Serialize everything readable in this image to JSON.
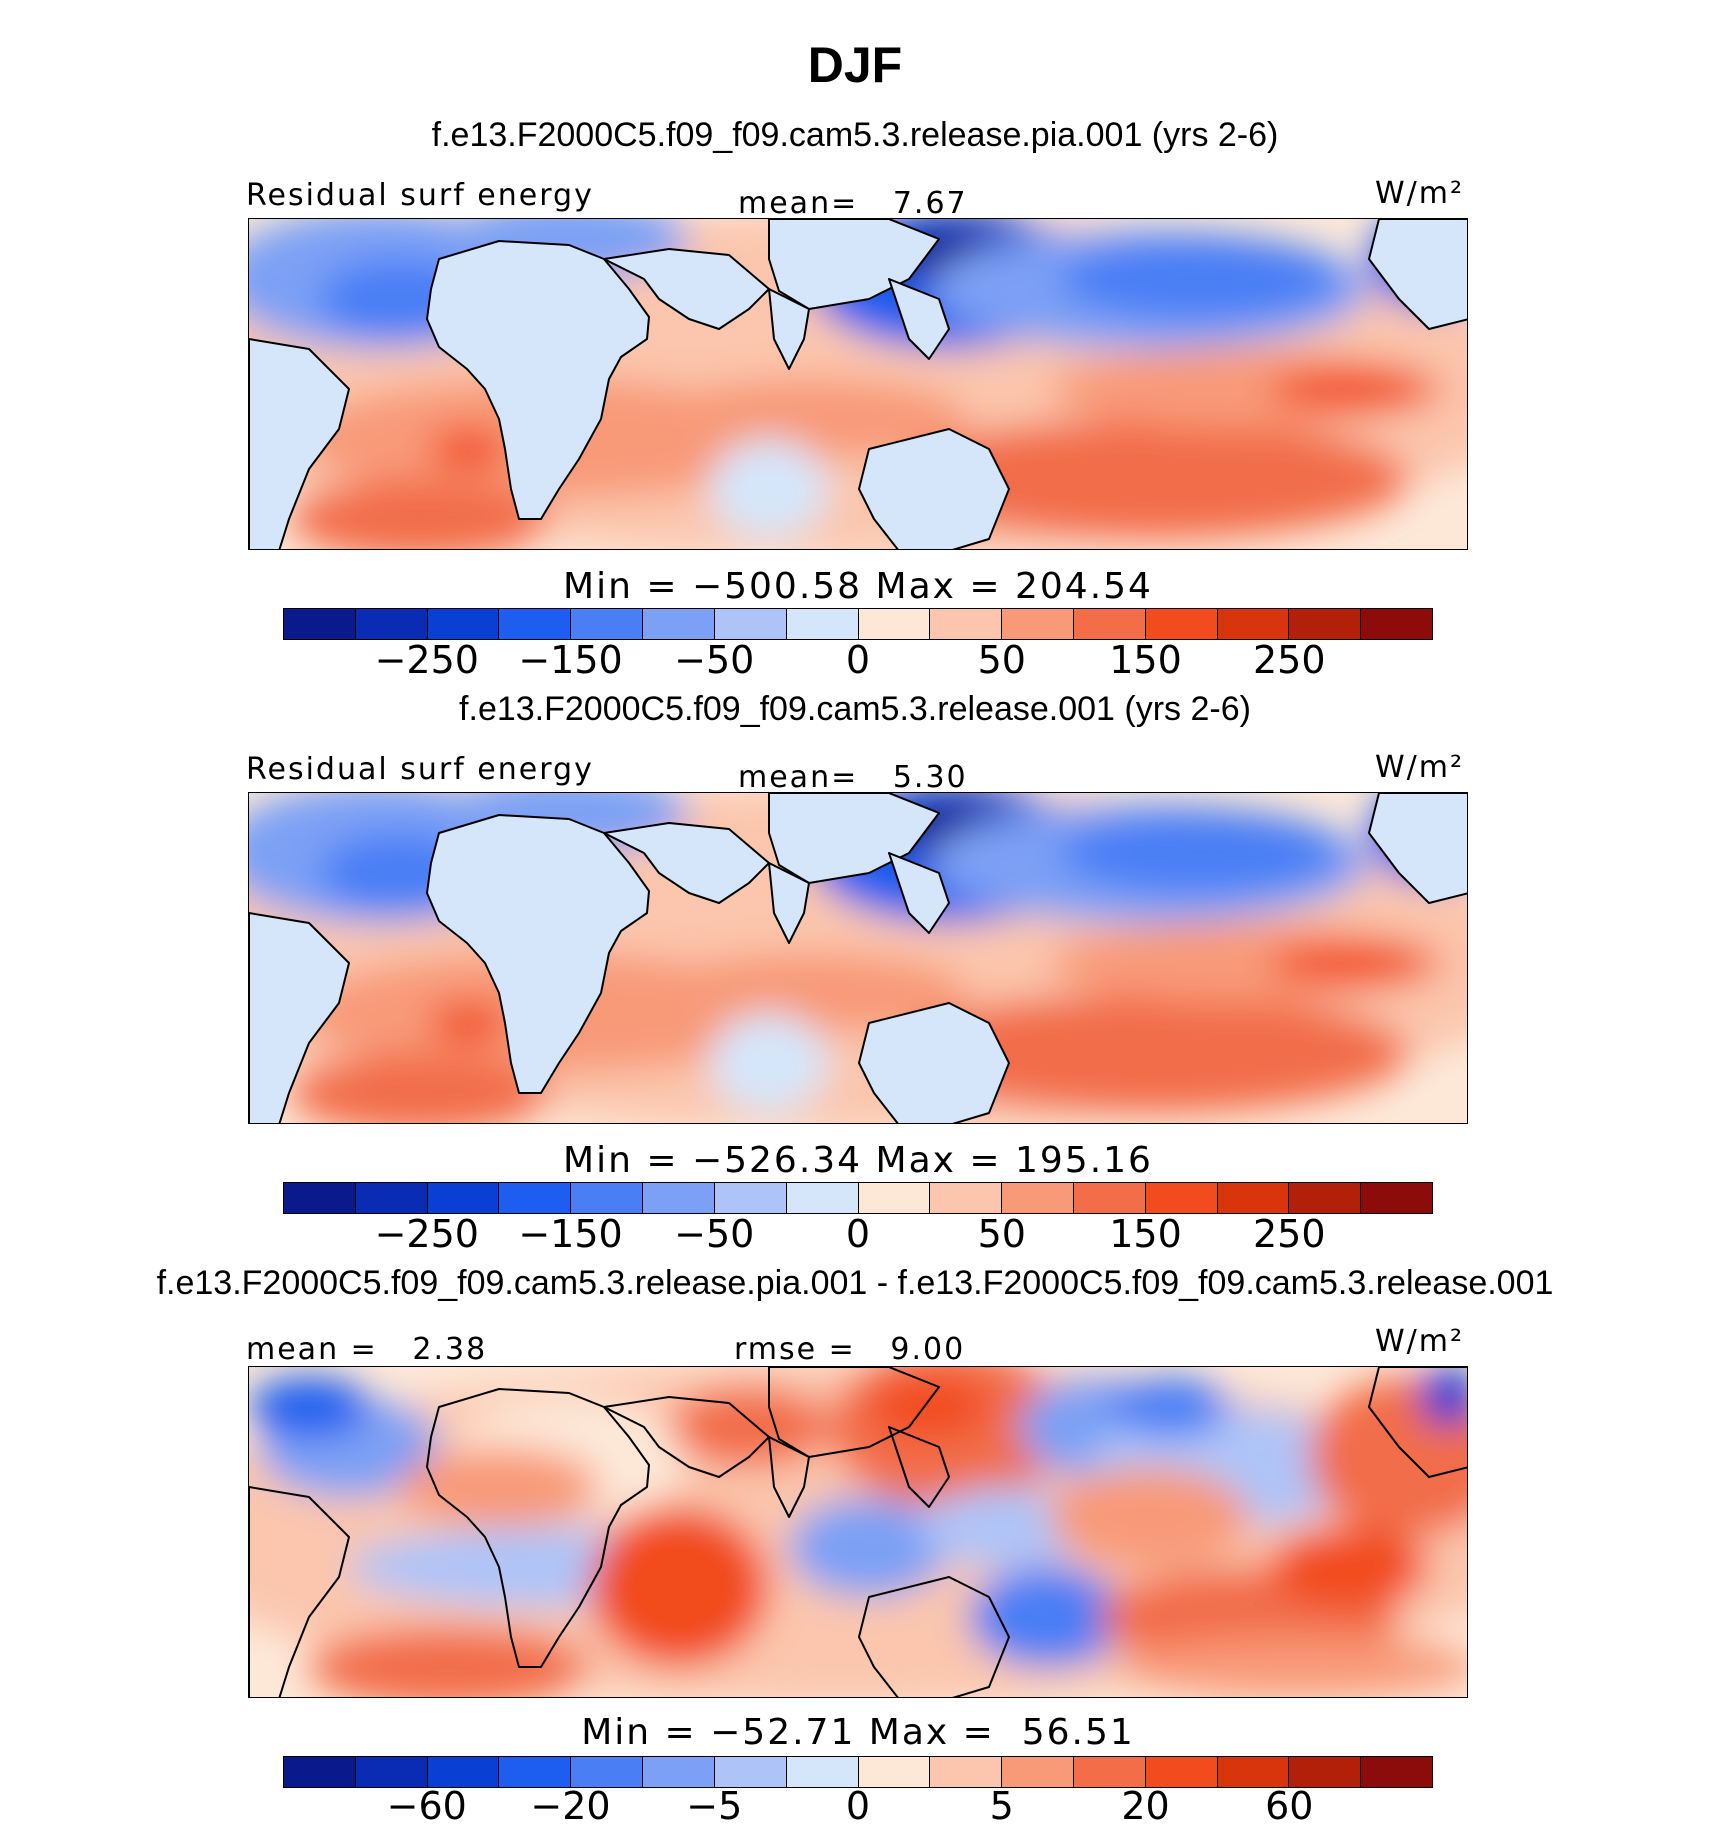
{
  "title": "DJF",
  "units": "W/m²",
  "colors": [
    "#0a1a8c",
    "#0a2cb4",
    "#0a3fd4",
    "#1d5ef0",
    "#4a7ef5",
    "#7ba0f5",
    "#aec4f8",
    "#d6e6fa",
    "#fde8d8",
    "#fbc6ad",
    "#f89a78",
    "#f26d48",
    "#f24c1e",
    "#d8350c",
    "#b2200a",
    "#8c0b0b"
  ],
  "panels": [
    {
      "title": "f.e13.F2000C5.f09_f09.cam5.3.release.pia.001 (yrs 2-6)",
      "left_label": "Residual surf energy",
      "center_label": "mean=   7.67",
      "minmax": "Min = −500.58 Max = 204.54",
      "ticks": [
        "−250",
        "−150",
        "−50",
        "0",
        "50",
        "150",
        "250"
      ]
    },
    {
      "title": "f.e13.F2000C5.f09_f09.cam5.3.release.001 (yrs 2-6)",
      "left_label": "Residual surf energy",
      "center_label": "mean=   5.30",
      "minmax": "Min = −526.34 Max = 195.16",
      "ticks": [
        "−250",
        "−150",
        "−50",
        "0",
        "50",
        "150",
        "250"
      ]
    },
    {
      "title": "f.e13.F2000C5.f09_f09.cam5.3.release.pia.001 - f.e13.F2000C5.f09_f09.cam5.3.release.001",
      "left_label": "mean =   2.38",
      "center_label": "rmse =   9.00",
      "minmax": "Min = −52.71 Max =  56.51",
      "ticks": [
        "−60",
        "−20",
        "−5",
        "0",
        "5",
        "20",
        "60"
      ]
    }
  ],
  "chart_data": [
    {
      "type": "heatmap",
      "title": "f.e13.F2000C5.f09_f09.cam5.3.release.pia.001 (yrs 2-6)",
      "variable": "Residual surf energy",
      "units": "W/m²",
      "mean": 7.67,
      "min": -500.58,
      "max": 204.54,
      "colorbar_ticks": [
        -250,
        -150,
        -50,
        0,
        50,
        150,
        250
      ]
    },
    {
      "type": "heatmap",
      "title": "f.e13.F2000C5.f09_f09.cam5.3.release.001 (yrs 2-6)",
      "variable": "Residual surf energy",
      "units": "W/m²",
      "mean": 5.3,
      "min": -526.34,
      "max": 195.16,
      "colorbar_ticks": [
        -250,
        -150,
        -50,
        0,
        50,
        150,
        250
      ]
    },
    {
      "type": "heatmap",
      "title": "f.e13.F2000C5.f09_f09.cam5.3.release.pia.001 - f.e13.F2000C5.f09_f09.cam5.3.release.001",
      "units": "W/m²",
      "mean": 2.38,
      "rmse": 9.0,
      "min": -52.71,
      "max": 56.51,
      "colorbar_ticks": [
        -60,
        -20,
        -5,
        0,
        5,
        20,
        60
      ]
    }
  ]
}
